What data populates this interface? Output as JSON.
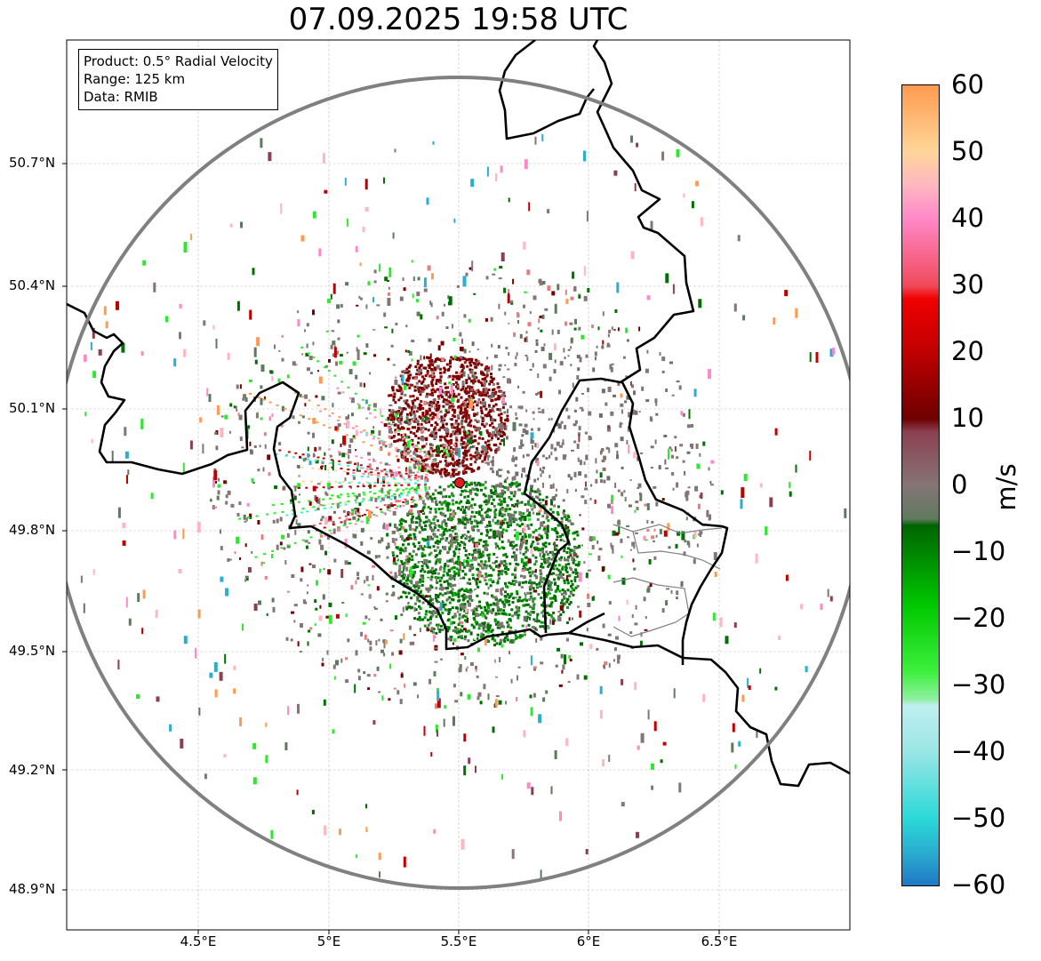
{
  "title": "07.09.2025 19:58 UTC",
  "info": {
    "product": "Product: 0.5° Radial Velocity",
    "range": "Range: 125 km",
    "source": "Data: RMIB"
  },
  "axes": {
    "lat_ticks": [
      "50.7°N",
      "50.4°N",
      "50.1°N",
      "49.8°N",
      "49.5°N",
      "49.2°N",
      "48.9°N"
    ],
    "lon_ticks": [
      "4.5°E",
      "5°E",
      "5.5°E",
      "6°E",
      "6.5°E"
    ],
    "grid": true,
    "lon_range": [
      4.0,
      7.0
    ],
    "lat_range": [
      48.8,
      51.0
    ]
  },
  "radar": {
    "lon": 5.506,
    "lat": 49.914,
    "marker_color": "#e31a1c",
    "range_circle_color": "#808080"
  },
  "colorbar": {
    "unit": "m/s",
    "min": -60,
    "max": 60,
    "ticks": [
      "60",
      "50",
      "40",
      "30",
      "20",
      "10",
      "0",
      "−10",
      "−20",
      "−30",
      "−40",
      "−50",
      "−60"
    ],
    "stops": [
      {
        "value": -60,
        "color": "#1f78c4"
      },
      {
        "value": -55,
        "color": "#2aaed0"
      },
      {
        "value": -50,
        "color": "#2ad8d8"
      },
      {
        "value": -40,
        "color": "#9ae6e6"
      },
      {
        "value": -33,
        "color": "#bfeff0"
      },
      {
        "value": -32,
        "color": "#8ff0a0"
      },
      {
        "value": -28,
        "color": "#3df03d"
      },
      {
        "value": -18,
        "color": "#00c800"
      },
      {
        "value": -6,
        "color": "#006400"
      },
      {
        "value": -5,
        "color": "#5e7a5e"
      },
      {
        "value": 0,
        "color": "#857575"
      },
      {
        "value": 8,
        "color": "#8b4050"
      },
      {
        "value": 10,
        "color": "#6e0000"
      },
      {
        "value": 20,
        "color": "#c00000"
      },
      {
        "value": 28,
        "color": "#f00000"
      },
      {
        "value": 30,
        "color": "#f04a5c"
      },
      {
        "value": 40,
        "color": "#ff88c8"
      },
      {
        "value": 45,
        "color": "#ffb6c1"
      },
      {
        "value": 50,
        "color": "#ffd699"
      },
      {
        "value": 60,
        "color": "#ff9a50"
      }
    ]
  },
  "colors": {
    "border": "#000000",
    "grid": "#c0c0c0",
    "admin_border": "#808080",
    "approaching_core": "#007000",
    "receding_core": "#7a0000",
    "near_zero": "#857575"
  }
}
